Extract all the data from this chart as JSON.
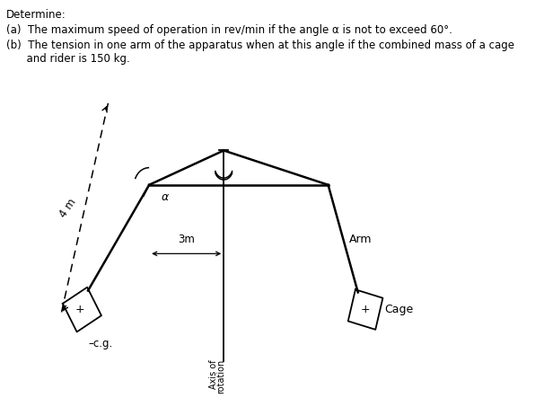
{
  "title_text": "Determine:",
  "line_a": "(a)  The maximum speed of operation in rev/min if the angle α is not to exceed 60°.",
  "line_b1": "(b)  The tension in one arm of the apparatus when at this angle if the combined mass of a cage",
  "line_b2": "      and rider is 150 kg.",
  "bg_color": "#ffffff",
  "text_color": "#000000",
  "arm_label": "Arm",
  "cage_label": "Cage",
  "cg_label": "c.g.",
  "arm_length_label": "4 m",
  "horiz_label": "3m",
  "axis_label_1": "Axis of",
  "axis_label_2": "rotation"
}
